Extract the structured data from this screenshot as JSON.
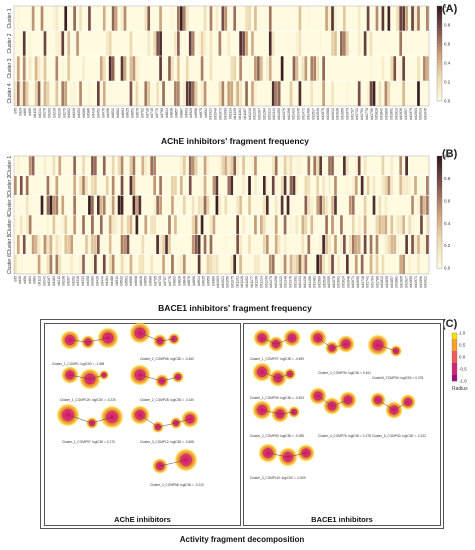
{
  "panels": {
    "a_letter": "(A)",
    "b_letter": "(B)",
    "c_letter": "(C)"
  },
  "chart_data": [
    {
      "type": "heatmap",
      "title": "AChE inhibitors' fragment  frequency",
      "rows": [
        "Cluster 1",
        "Cluster 2",
        "Cluster 3",
        "Cluster 4"
      ],
      "colorbar": {
        "min": 0.0,
        "max": 1.0,
        "ticks": [
          "1.0",
          "0.8",
          "0.6",
          "0.4",
          "0.2",
          "0.0"
        ]
      },
      "columns_count": 140,
      "x_tick_labels": [
        "bit5",
        "bit29",
        "bit60",
        "bit90",
        "bit115",
        "bit141",
        "bit176",
        "bit203",
        "bit216",
        "bit239",
        "bit270",
        "bit302",
        "bit316",
        "bit353",
        "bit360",
        "bit386",
        "bit419",
        "bit452",
        "bit476",
        "bit496",
        "bit532",
        "bit562",
        "bit603",
        "bit625",
        "bit651",
        "bit676",
        "bit702",
        "bit728",
        "bit745",
        "bit770",
        "bit799",
        "bit814",
        "bit838",
        "bit857",
        "bit887",
        "bit903",
        "bit929",
        "bit958",
        "bit975",
        "bit994",
        "bit1021",
        "bit1049",
        "bit1073",
        "bit1093",
        "bit1114",
        "bit1139",
        "bit1161",
        "bit1187",
        "bit1210",
        "bit1239",
        "bit1267",
        "bit1284",
        "bit1312",
        "bit1341",
        "bit1350",
        "bit1376",
        "bit1398",
        "bit1423",
        "bit1445",
        "bit1471",
        "bit1496",
        "bit1517",
        "bit1546",
        "bit1570",
        "bit1588",
        "bit1613",
        "bit1636",
        "bit1659",
        "bit1679",
        "bit1707",
        "bit1731",
        "bit1751",
        "bit1778",
        "bit1795",
        "bit1818",
        "bit1841",
        "bit1869",
        "bit1891",
        "bit1913",
        "bit1936",
        "bit1957",
        "bit1979",
        "bit2003",
        "bit2013",
        "bit2045"
      ]
    },
    {
      "type": "heatmap",
      "title": "BACE1 inhibitors' fragment  frequency",
      "rows": [
        "Cluster 1",
        "Cluster 2",
        "Cluster 3",
        "Cluster 4",
        "Cluster 5",
        "Cluster 6"
      ],
      "colorbar": {
        "min": 0.0,
        "max": 1.0,
        "ticks": [
          "1.0",
          "0.8",
          "0.6",
          "0.4",
          "0.2",
          "0.0"
        ]
      },
      "columns_count": 140,
      "x_tick_labels": [
        "bit5",
        "bit30",
        "bit56",
        "bit64",
        "bit83",
        "bit113",
        "bit141",
        "bit167",
        "bit183",
        "bit211",
        "bit238",
        "bit267",
        "bit291",
        "bit316",
        "bit333",
        "bit358",
        "bit383",
        "bit416",
        "bit444",
        "bit464",
        "bit488",
        "bit511",
        "bit532",
        "bit561",
        "bit585",
        "bit608",
        "bit628",
        "bit650",
        "bit680",
        "bit705",
        "bit733",
        "bit757",
        "bit778",
        "bit802",
        "bit828",
        "bit849",
        "bit876",
        "bit896",
        "bit914",
        "bit935",
        "bit959",
        "bit980",
        "bit1003",
        "bit1021",
        "bit1050",
        "bit1075",
        "bit1101",
        "bit1126",
        "bit1152",
        "bit1177",
        "bit1199",
        "bit1224",
        "bit1249",
        "bit1270",
        "bit1298",
        "bit1322",
        "bit1348",
        "bit1370",
        "bit1392",
        "bit1413",
        "bit1436",
        "bit1458",
        "bit1481",
        "bit1506",
        "bit1530",
        "bit1555",
        "bit1578",
        "bit1601",
        "bit1624",
        "bit1648",
        "bit1671",
        "bit1695",
        "bit1718",
        "bit1741",
        "bit1764",
        "bit1786",
        "bit1812",
        "bit1835",
        "bit1857",
        "bit1881",
        "bit1905",
        "bit1927",
        "bit1950",
        "bit1971",
        "bit1996",
        "bit2021"
      ]
    }
  ],
  "panel_c": {
    "title": "Activity fragment decomposition",
    "colorbar_ticks": [
      "1.0",
      "0.5",
      "0.0",
      "-0.5",
      "-1.0"
    ],
    "colorbar_label": "Radius",
    "ache": {
      "title": "AChE inhibitors",
      "molecules": [
        {
          "caption": "Cluster_1_COMP1: logIC50 = -1.398"
        },
        {
          "caption": "Cluster_2_COMP56: logIC50 = -0.460"
        },
        {
          "caption": "Cluster_1_COMP120: logIC50 = -0.225"
        },
        {
          "caption": "Cluster_2_COMP28: logIC50 = -0.240"
        },
        {
          "caption": "Cluster_1_COMP97: logIC50 = 0.170"
        },
        {
          "caption": "Cluster_3_COMP12: logIC50 = -0.608"
        },
        {
          "caption": "Cluster_4_COMP58: logIC50 = -0.210"
        }
      ]
    },
    "bace": {
      "title": "BACE1 inhibitors",
      "molecules": [
        {
          "caption": "Cluster_1_COMP07: logIC50 = -0.699"
        },
        {
          "caption": "Cluster_1_COMP09: logIC50 = -0.523"
        },
        {
          "caption": "Cluster_2_COMP50: logIC50 = -0.398"
        },
        {
          "caption": "Cluster_3_COMP110: logIC50 = -0.509"
        },
        {
          "caption": "Cluster_4_COMP30: logIC50 = 0.451"
        },
        {
          "caption": "Cluster_4_COMP75: logIC50 = 0.278"
        },
        {
          "caption": "Cluster5_COMP50: logIC50 = 0.378"
        },
        {
          "caption": "Cluster_6_COMP30: logIC50 = -0.222"
        }
      ]
    }
  }
}
